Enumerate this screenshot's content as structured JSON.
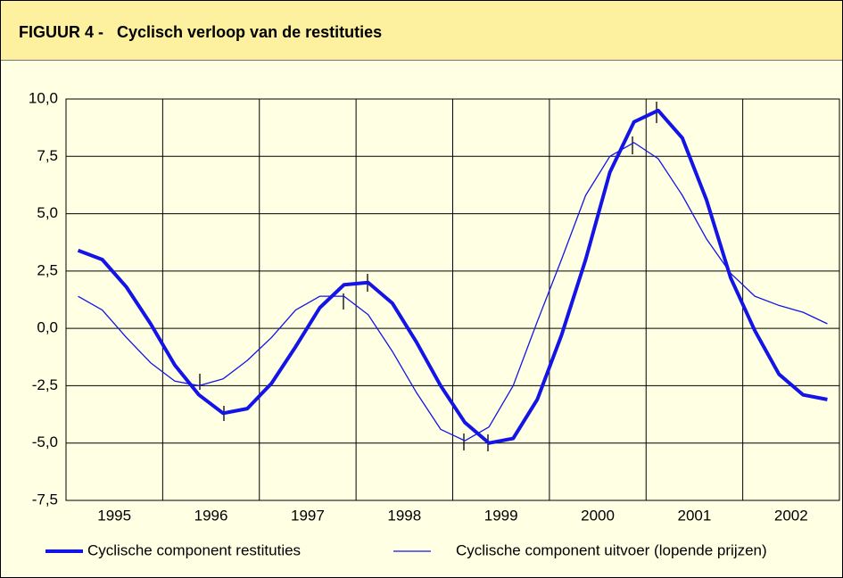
{
  "chart_data": {
    "type": "line",
    "title": "FIGUUR 4 -   Cyclisch verloop van de restituties",
    "x": [
      1995.125,
      1995.375,
      1995.625,
      1995.875,
      1996.125,
      1996.375,
      1996.625,
      1996.875,
      1997.125,
      1997.375,
      1997.625,
      1997.875,
      1998.125,
      1998.375,
      1998.625,
      1998.875,
      1999.125,
      1999.375,
      1999.625,
      1999.875,
      2000.125,
      2000.375,
      2000.625,
      2000.875,
      2001.125,
      2001.375,
      2001.625,
      2001.875,
      2002.125,
      2002.375,
      2002.625,
      2002.875
    ],
    "xlim": [
      1995,
      2003
    ],
    "xticks": [
      {
        "value": 1995.5,
        "label": "1995"
      },
      {
        "value": 1996.5,
        "label": "1996"
      },
      {
        "value": 1997.5,
        "label": "1997"
      },
      {
        "value": 1998.5,
        "label": "1998"
      },
      {
        "value": 1999.5,
        "label": "1999"
      },
      {
        "value": 2000.5,
        "label": "2000"
      },
      {
        "value": 2001.5,
        "label": "2001"
      },
      {
        "value": 2002.5,
        "label": "2002"
      }
    ],
    "ylim": [
      -7.5,
      10
    ],
    "yticks": [
      {
        "value": 10,
        "label": "10,0"
      },
      {
        "value": 7.5,
        "label": "7,5"
      },
      {
        "value": 5,
        "label": "5,0"
      },
      {
        "value": 2.5,
        "label": "2,5"
      },
      {
        "value": 0,
        "label": "0,0"
      },
      {
        "value": -2.5,
        "label": "-2,5"
      },
      {
        "value": -5,
        "label": "-5,0"
      },
      {
        "value": -7.5,
        "label": "-7,5"
      }
    ],
    "grid": true,
    "legend": "bottom",
    "series": [
      {
        "name": "Cyclische component restituties",
        "color": "#1414e6",
        "width": 4,
        "values": [
          3.4,
          3.0,
          1.8,
          0.2,
          -1.6,
          -2.9,
          -3.7,
          -3.5,
          -2.4,
          -0.8,
          0.9,
          1.9,
          2.0,
          1.1,
          -0.6,
          -2.5,
          -4.1,
          -5.0,
          -4.8,
          -3.1,
          -0.3,
          3.0,
          6.8,
          9.0,
          9.5,
          8.3,
          5.6,
          2.2,
          -0.1,
          -2.0,
          -2.9,
          -3.1
        ]
      },
      {
        "name": "Cyclische component uitvoer (lopende prijzen)",
        "color": "#1414e6",
        "width": 1.3,
        "values": [
          1.4,
          0.8,
          -0.4,
          -1.5,
          -2.3,
          -2.5,
          -2.2,
          -1.4,
          -0.4,
          0.8,
          1.4,
          1.4,
          0.6,
          -1.0,
          -2.8,
          -4.4,
          -4.9,
          -4.3,
          -2.5,
          0.3,
          3.0,
          5.8,
          7.5,
          8.1,
          7.4,
          5.8,
          3.9,
          2.4,
          1.4,
          1.0,
          0.7,
          0.2
        ]
      }
    ]
  }
}
